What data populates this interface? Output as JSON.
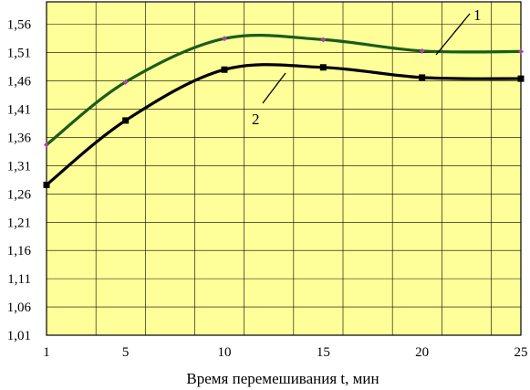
{
  "chart_data": {
    "type": "line",
    "title": "",
    "xlabel": "Время перемешивания t, мин",
    "ylabel": "",
    "x": [
      1,
      5,
      10,
      15,
      20,
      25
    ],
    "x_ticks": [
      "1",
      "5",
      "10",
      "15",
      "20",
      "25"
    ],
    "xlim": [
      1,
      25
    ],
    "ylim": [
      1.01,
      1.6
    ],
    "y_ticks": [
      "1,01",
      "1,06",
      "1,11",
      "1,16",
      "1,21",
      "1,26",
      "1,31",
      "1,36",
      "1,41",
      "1,46",
      "1,51",
      "1,56"
    ],
    "y_tick_values": [
      1.01,
      1.06,
      1.11,
      1.16,
      1.21,
      1.26,
      1.31,
      1.36,
      1.41,
      1.46,
      1.51,
      1.56
    ],
    "grid": true,
    "legend": "none",
    "series": [
      {
        "name": "1",
        "values": [
          1.347,
          1.458,
          1.535,
          1.533,
          1.513,
          1.512
        ],
        "line_color": "#1a5c1a",
        "marker": "diamond",
        "marker_color": "#aa44aa"
      },
      {
        "name": "2",
        "values": [
          1.276,
          1.39,
          1.48,
          1.484,
          1.466,
          1.464
        ],
        "line_color": "#000000",
        "marker": "square",
        "marker_color": "#000000"
      }
    ],
    "colors": {
      "plot_background": "#ffff99",
      "grid": "#000000"
    }
  }
}
